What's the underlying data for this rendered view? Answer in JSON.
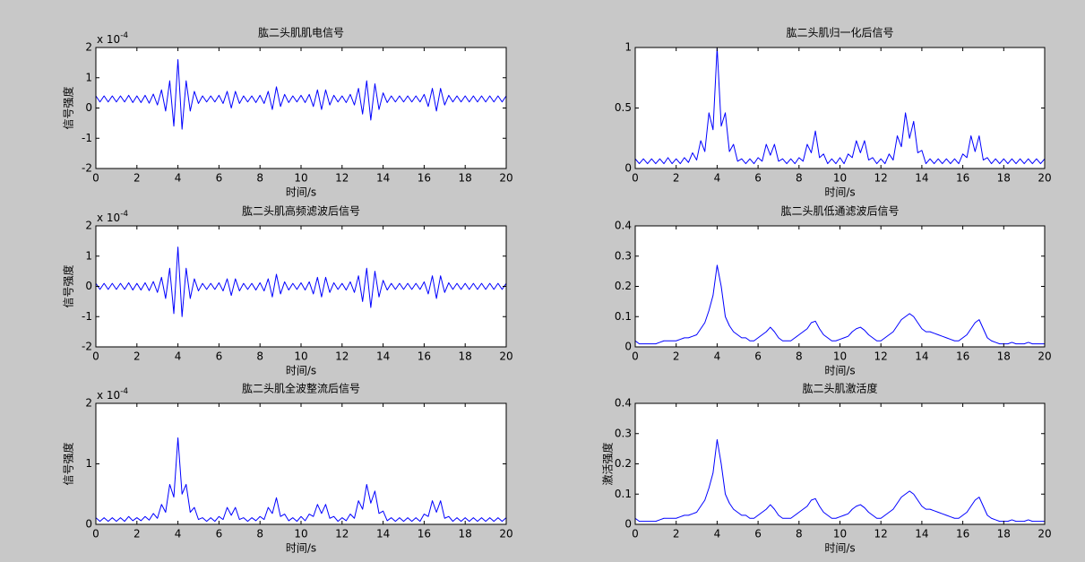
{
  "chart_data": [
    {
      "type": "line",
      "title": "肱二头肌肌电信号",
      "xlabel": "时间/s",
      "ylabel": "信号强度",
      "y_multiplier": "x 10",
      "y_exponent": "-4",
      "color": "#0000ff",
      "x": [
        0,
        0.2,
        0.4,
        0.6,
        0.8,
        1,
        1.2,
        1.4,
        1.6,
        1.8,
        2,
        2.2,
        2.4,
        2.6,
        2.8,
        3,
        3.2,
        3.4,
        3.6,
        3.8,
        4,
        4.2,
        4.4,
        4.6,
        4.8,
        5,
        5.2,
        5.4,
        5.6,
        5.8,
        6,
        6.2,
        6.4,
        6.6,
        6.8,
        7,
        7.2,
        7.4,
        7.6,
        7.8,
        8,
        8.2,
        8.4,
        8.6,
        8.8,
        9,
        9.2,
        9.4,
        9.6,
        9.8,
        10,
        10.2,
        10.4,
        10.6,
        10.8,
        11,
        11.2,
        11.4,
        11.6,
        11.8,
        12,
        12.2,
        12.4,
        12.6,
        12.8,
        13,
        13.2,
        13.4,
        13.6,
        13.8,
        14,
        14.2,
        14.4,
        14.6,
        14.8,
        15,
        15.2,
        15.4,
        15.6,
        15.8,
        16,
        16.2,
        16.4,
        16.6,
        16.8,
        17,
        17.2,
        17.4,
        17.6,
        17.8,
        18,
        18.2,
        18.4,
        18.6,
        18.8,
        19,
        19.2,
        19.4,
        19.6,
        19.8,
        20
      ],
      "values": [
        0.4,
        0.2,
        0.4,
        0.2,
        0.4,
        0.2,
        0.4,
        0.2,
        0.42,
        0.18,
        0.4,
        0.18,
        0.42,
        0.16,
        0.46,
        0.1,
        0.6,
        -0.1,
        0.9,
        -0.6,
        1.6,
        -0.7,
        0.9,
        -0.1,
        0.55,
        0.15,
        0.4,
        0.2,
        0.4,
        0.2,
        0.42,
        0.15,
        0.55,
        0,
        0.55,
        0.15,
        0.4,
        0.2,
        0.4,
        0.18,
        0.42,
        0.15,
        0.55,
        -0.05,
        0.7,
        0.05,
        0.45,
        0.18,
        0.4,
        0.2,
        0.42,
        0.18,
        0.45,
        0.05,
        0.6,
        -0.05,
        0.6,
        0.1,
        0.42,
        0.2,
        0.4,
        0.18,
        0.45,
        0.1,
        0.65,
        -0.2,
        0.9,
        -0.4,
        0.8,
        -0.05,
        0.5,
        0.18,
        0.4,
        0.2,
        0.4,
        0.2,
        0.4,
        0.2,
        0.4,
        0.2,
        0.45,
        0.05,
        0.65,
        -0.1,
        0.65,
        0.1,
        0.42,
        0.2,
        0.4,
        0.2,
        0.4,
        0.2,
        0.4,
        0.2,
        0.4,
        0.2,
        0.4,
        0.2,
        0.4,
        0.2,
        0.4
      ],
      "xlim": [
        0,
        20
      ],
      "xticks": [
        0,
        2,
        4,
        6,
        8,
        10,
        12,
        14,
        16,
        18,
        20
      ],
      "ylim": [
        -2,
        2
      ],
      "yticks": [
        -2,
        -1,
        0,
        1,
        2
      ]
    },
    {
      "type": "line",
      "title": "肱二头肌归一化后信号",
      "xlabel": "时间/s",
      "color": "#0000ff",
      "x": [
        0,
        0.2,
        0.4,
        0.6,
        0.8,
        1,
        1.2,
        1.4,
        1.6,
        1.8,
        2,
        2.2,
        2.4,
        2.6,
        2.8,
        3,
        3.2,
        3.4,
        3.6,
        3.8,
        4,
        4.2,
        4.4,
        4.6,
        4.8,
        5,
        5.2,
        5.4,
        5.6,
        5.8,
        6,
        6.2,
        6.4,
        6.6,
        6.8,
        7,
        7.2,
        7.4,
        7.6,
        7.8,
        8,
        8.2,
        8.4,
        8.6,
        8.8,
        9,
        9.2,
        9.4,
        9.6,
        9.8,
        10,
        10.2,
        10.4,
        10.6,
        10.8,
        11,
        11.2,
        11.4,
        11.6,
        11.8,
        12,
        12.2,
        12.4,
        12.6,
        12.8,
        13,
        13.2,
        13.4,
        13.6,
        13.8,
        14,
        14.2,
        14.4,
        14.6,
        14.8,
        15,
        15.2,
        15.4,
        15.6,
        15.8,
        16,
        16.2,
        16.4,
        16.6,
        16.8,
        17,
        17.2,
        17.4,
        17.6,
        17.8,
        18,
        18.2,
        18.4,
        18.6,
        18.8,
        19,
        19.2,
        19.4,
        19.6,
        19.8,
        20
      ],
      "values": [
        0.08,
        0.04,
        0.08,
        0.04,
        0.08,
        0.04,
        0.08,
        0.04,
        0.09,
        0.04,
        0.08,
        0.04,
        0.09,
        0.05,
        0.13,
        0.07,
        0.23,
        0.14,
        0.46,
        0.32,
        1.0,
        0.35,
        0.46,
        0.14,
        0.2,
        0.06,
        0.08,
        0.04,
        0.08,
        0.04,
        0.09,
        0.06,
        0.2,
        0.11,
        0.2,
        0.06,
        0.08,
        0.04,
        0.08,
        0.04,
        0.09,
        0.06,
        0.2,
        0.13,
        0.31,
        0.09,
        0.12,
        0.04,
        0.08,
        0.04,
        0.09,
        0.04,
        0.12,
        0.09,
        0.23,
        0.13,
        0.23,
        0.07,
        0.09,
        0.04,
        0.08,
        0.04,
        0.12,
        0.07,
        0.27,
        0.18,
        0.46,
        0.25,
        0.39,
        0.13,
        0.15,
        0.04,
        0.08,
        0.04,
        0.08,
        0.04,
        0.08,
        0.04,
        0.08,
        0.04,
        0.12,
        0.09,
        0.27,
        0.14,
        0.27,
        0.07,
        0.09,
        0.04,
        0.08,
        0.04,
        0.08,
        0.04,
        0.08,
        0.04,
        0.08,
        0.04,
        0.08,
        0.04,
        0.08,
        0.04,
        0.08
      ],
      "xlim": [
        0,
        20
      ],
      "xticks": [
        0,
        2,
        4,
        6,
        8,
        10,
        12,
        14,
        16,
        18,
        20
      ],
      "ylim": [
        0,
        1
      ],
      "yticks": [
        0,
        0.5,
        1
      ]
    },
    {
      "type": "line",
      "title": "肱二头肌高频滤波后信号",
      "xlabel": "时间/s",
      "ylabel": "信号强度",
      "y_multiplier": "x 10",
      "y_exponent": "-4",
      "color": "#0000ff",
      "x": [
        0,
        0.2,
        0.4,
        0.6,
        0.8,
        1,
        1.2,
        1.4,
        1.6,
        1.8,
        2,
        2.2,
        2.4,
        2.6,
        2.8,
        3,
        3.2,
        3.4,
        3.6,
        3.8,
        4,
        4.2,
        4.4,
        4.6,
        4.8,
        5,
        5.2,
        5.4,
        5.6,
        5.8,
        6,
        6.2,
        6.4,
        6.6,
        6.8,
        7,
        7.2,
        7.4,
        7.6,
        7.8,
        8,
        8.2,
        8.4,
        8.6,
        8.8,
        9,
        9.2,
        9.4,
        9.6,
        9.8,
        10,
        10.2,
        10.4,
        10.6,
        10.8,
        11,
        11.2,
        11.4,
        11.6,
        11.8,
        12,
        12.2,
        12.4,
        12.6,
        12.8,
        13,
        13.2,
        13.4,
        13.6,
        13.8,
        14,
        14.2,
        14.4,
        14.6,
        14.8,
        15,
        15.2,
        15.4,
        15.6,
        15.8,
        16,
        16.2,
        16.4,
        16.6,
        16.8,
        17,
        17.2,
        17.4,
        17.6,
        17.8,
        18,
        18.2,
        18.4,
        18.6,
        18.8,
        19,
        19.2,
        19.4,
        19.6,
        19.8,
        20
      ],
      "values": [
        0.1,
        -0.1,
        0.1,
        -0.1,
        0.1,
        -0.1,
        0.1,
        -0.1,
        0.12,
        -0.12,
        0.1,
        -0.12,
        0.12,
        -0.14,
        0.16,
        -0.2,
        0.3,
        -0.4,
        0.6,
        -0.9,
        1.3,
        -1.0,
        0.6,
        -0.4,
        0.25,
        -0.15,
        0.1,
        -0.1,
        0.1,
        -0.1,
        0.12,
        -0.15,
        0.25,
        -0.3,
        0.25,
        -0.15,
        0.1,
        -0.1,
        0.1,
        -0.12,
        0.12,
        -0.15,
        0.25,
        -0.35,
        0.4,
        -0.25,
        0.15,
        -0.12,
        0.1,
        -0.1,
        0.12,
        -0.12,
        0.15,
        -0.25,
        0.3,
        -0.35,
        0.3,
        -0.2,
        0.12,
        -0.1,
        0.1,
        -0.12,
        0.15,
        -0.2,
        0.35,
        -0.5,
        0.6,
        -0.7,
        0.5,
        -0.35,
        0.2,
        -0.12,
        0.1,
        -0.1,
        0.1,
        -0.1,
        0.1,
        -0.1,
        0.1,
        -0.1,
        0.15,
        -0.25,
        0.35,
        -0.4,
        0.35,
        -0.2,
        0.12,
        -0.1,
        0.1,
        -0.1,
        0.1,
        -0.1,
        0.1,
        -0.1,
        0.1,
        -0.1,
        0.1,
        -0.1,
        0.1,
        -0.1,
        0.1
      ],
      "xlim": [
        0,
        20
      ],
      "xticks": [
        0,
        2,
        4,
        6,
        8,
        10,
        12,
        14,
        16,
        18,
        20
      ],
      "ylim": [
        -2,
        2
      ],
      "yticks": [
        -2,
        -1,
        0,
        1,
        2
      ]
    },
    {
      "type": "line",
      "title": "肱二头肌低通滤波后信号",
      "xlabel": "时间/s",
      "color": "#0000ff",
      "x": [
        0,
        0.2,
        0.4,
        0.6,
        0.8,
        1,
        1.2,
        1.4,
        1.6,
        1.8,
        2,
        2.2,
        2.4,
        2.6,
        2.8,
        3,
        3.2,
        3.4,
        3.6,
        3.8,
        4,
        4.2,
        4.4,
        4.6,
        4.8,
        5,
        5.2,
        5.4,
        5.6,
        5.8,
        6,
        6.2,
        6.4,
        6.6,
        6.8,
        7,
        7.2,
        7.4,
        7.6,
        7.8,
        8,
        8.2,
        8.4,
        8.6,
        8.8,
        9,
        9.2,
        9.4,
        9.6,
        9.8,
        10,
        10.2,
        10.4,
        10.6,
        10.8,
        11,
        11.2,
        11.4,
        11.6,
        11.8,
        12,
        12.2,
        12.4,
        12.6,
        12.8,
        13,
        13.2,
        13.4,
        13.6,
        13.8,
        14,
        14.2,
        14.4,
        14.6,
        14.8,
        15,
        15.2,
        15.4,
        15.6,
        15.8,
        16,
        16.2,
        16.4,
        16.6,
        16.8,
        17,
        17.2,
        17.4,
        17.6,
        17.8,
        18,
        18.2,
        18.4,
        18.6,
        18.8,
        19,
        19.2,
        19.4,
        19.6,
        19.8,
        20
      ],
      "values": [
        0.02,
        0.01,
        0.01,
        0.01,
        0.01,
        0.01,
        0.015,
        0.02,
        0.02,
        0.02,
        0.02,
        0.025,
        0.03,
        0.03,
        0.035,
        0.04,
        0.06,
        0.08,
        0.12,
        0.17,
        0.27,
        0.2,
        0.1,
        0.07,
        0.05,
        0.04,
        0.03,
        0.03,
        0.02,
        0.02,
        0.03,
        0.04,
        0.05,
        0.065,
        0.05,
        0.03,
        0.02,
        0.02,
        0.02,
        0.03,
        0.04,
        0.05,
        0.06,
        0.08,
        0.085,
        0.06,
        0.04,
        0.03,
        0.02,
        0.02,
        0.025,
        0.03,
        0.035,
        0.05,
        0.06,
        0.065,
        0.055,
        0.04,
        0.03,
        0.02,
        0.02,
        0.03,
        0.04,
        0.05,
        0.07,
        0.09,
        0.1,
        0.11,
        0.1,
        0.08,
        0.06,
        0.05,
        0.05,
        0.045,
        0.04,
        0.035,
        0.03,
        0.025,
        0.02,
        0.02,
        0.03,
        0.04,
        0.06,
        0.08,
        0.09,
        0.06,
        0.03,
        0.02,
        0.015,
        0.01,
        0.01,
        0.01,
        0.015,
        0.01,
        0.01,
        0.01,
        0.015,
        0.01,
        0.01,
        0.01,
        0.01
      ],
      "xlim": [
        0,
        20
      ],
      "xticks": [
        0,
        2,
        4,
        6,
        8,
        10,
        12,
        14,
        16,
        18,
        20
      ],
      "ylim": [
        0,
        0.4
      ],
      "yticks": [
        0,
        0.1,
        0.2,
        0.3,
        0.4
      ]
    },
    {
      "type": "line",
      "title": "肱二头肌全波整流后信号",
      "xlabel": "时间/s",
      "ylabel": "信号强度",
      "y_multiplier": "x 10",
      "y_exponent": "-4",
      "color": "#0000ff",
      "x": [
        0,
        0.2,
        0.4,
        0.6,
        0.8,
        1,
        1.2,
        1.4,
        1.6,
        1.8,
        2,
        2.2,
        2.4,
        2.6,
        2.8,
        3,
        3.2,
        3.4,
        3.6,
        3.8,
        4,
        4.2,
        4.4,
        4.6,
        4.8,
        5,
        5.2,
        5.4,
        5.6,
        5.8,
        6,
        6.2,
        6.4,
        6.6,
        6.8,
        7,
        7.2,
        7.4,
        7.6,
        7.8,
        8,
        8.2,
        8.4,
        8.6,
        8.8,
        9,
        9.2,
        9.4,
        9.6,
        9.8,
        10,
        10.2,
        10.4,
        10.6,
        10.8,
        11,
        11.2,
        11.4,
        11.6,
        11.8,
        12,
        12.2,
        12.4,
        12.6,
        12.8,
        13,
        13.2,
        13.4,
        13.6,
        13.8,
        14,
        14.2,
        14.4,
        14.6,
        14.8,
        15,
        15.2,
        15.4,
        15.6,
        15.8,
        16,
        16.2,
        16.4,
        16.6,
        16.8,
        17,
        17.2,
        17.4,
        17.6,
        17.8,
        18,
        18.2,
        18.4,
        18.6,
        18.8,
        19,
        19.2,
        19.4,
        19.6,
        19.8,
        20
      ],
      "values": [
        0.11,
        0.05,
        0.11,
        0.05,
        0.11,
        0.05,
        0.11,
        0.05,
        0.13,
        0.06,
        0.11,
        0.06,
        0.13,
        0.07,
        0.18,
        0.1,
        0.33,
        0.2,
        0.66,
        0.45,
        1.43,
        0.5,
        0.66,
        0.2,
        0.28,
        0.08,
        0.11,
        0.05,
        0.11,
        0.05,
        0.13,
        0.08,
        0.28,
        0.15,
        0.28,
        0.08,
        0.11,
        0.05,
        0.11,
        0.06,
        0.13,
        0.08,
        0.28,
        0.18,
        0.44,
        0.13,
        0.17,
        0.06,
        0.11,
        0.05,
        0.13,
        0.06,
        0.17,
        0.13,
        0.33,
        0.18,
        0.33,
        0.1,
        0.13,
        0.05,
        0.11,
        0.06,
        0.17,
        0.1,
        0.39,
        0.25,
        0.66,
        0.35,
        0.55,
        0.18,
        0.22,
        0.06,
        0.11,
        0.05,
        0.11,
        0.05,
        0.11,
        0.05,
        0.11,
        0.05,
        0.17,
        0.13,
        0.39,
        0.2,
        0.39,
        0.1,
        0.13,
        0.05,
        0.11,
        0.05,
        0.11,
        0.05,
        0.11,
        0.05,
        0.11,
        0.05,
        0.11,
        0.05,
        0.11,
        0.05,
        0.11
      ],
      "xlim": [
        0,
        20
      ],
      "xticks": [
        0,
        2,
        4,
        6,
        8,
        10,
        12,
        14,
        16,
        18,
        20
      ],
      "ylim": [
        0,
        2
      ],
      "yticks": [
        0,
        1,
        2
      ]
    },
    {
      "type": "line",
      "title": "肱二头肌激活度",
      "xlabel": "时间/s",
      "ylabel": "激活强度",
      "color": "#0000ff",
      "x": [
        0,
        0.2,
        0.4,
        0.6,
        0.8,
        1,
        1.2,
        1.4,
        1.6,
        1.8,
        2,
        2.2,
        2.4,
        2.6,
        2.8,
        3,
        3.2,
        3.4,
        3.6,
        3.8,
        4,
        4.2,
        4.4,
        4.6,
        4.8,
        5,
        5.2,
        5.4,
        5.6,
        5.8,
        6,
        6.2,
        6.4,
        6.6,
        6.8,
        7,
        7.2,
        7.4,
        7.6,
        7.8,
        8,
        8.2,
        8.4,
        8.6,
        8.8,
        9,
        9.2,
        9.4,
        9.6,
        9.8,
        10,
        10.2,
        10.4,
        10.6,
        10.8,
        11,
        11.2,
        11.4,
        11.6,
        11.8,
        12,
        12.2,
        12.4,
        12.6,
        12.8,
        13,
        13.2,
        13.4,
        13.6,
        13.8,
        14,
        14.2,
        14.4,
        14.6,
        14.8,
        15,
        15.2,
        15.4,
        15.6,
        15.8,
        16,
        16.2,
        16.4,
        16.6,
        16.8,
        17,
        17.2,
        17.4,
        17.6,
        17.8,
        18,
        18.2,
        18.4,
        18.6,
        18.8,
        19,
        19.2,
        19.4,
        19.6,
        19.8,
        20
      ],
      "values": [
        0.02,
        0.01,
        0.01,
        0.01,
        0.01,
        0.01,
        0.015,
        0.02,
        0.02,
        0.02,
        0.02,
        0.025,
        0.03,
        0.03,
        0.035,
        0.04,
        0.06,
        0.08,
        0.12,
        0.17,
        0.28,
        0.2,
        0.1,
        0.07,
        0.05,
        0.04,
        0.03,
        0.03,
        0.02,
        0.02,
        0.03,
        0.04,
        0.05,
        0.065,
        0.05,
        0.03,
        0.02,
        0.02,
        0.02,
        0.03,
        0.04,
        0.05,
        0.06,
        0.08,
        0.085,
        0.06,
        0.04,
        0.03,
        0.02,
        0.02,
        0.025,
        0.03,
        0.035,
        0.05,
        0.06,
        0.065,
        0.055,
        0.04,
        0.03,
        0.02,
        0.02,
        0.03,
        0.04,
        0.05,
        0.07,
        0.09,
        0.1,
        0.11,
        0.1,
        0.08,
        0.06,
        0.05,
        0.05,
        0.045,
        0.04,
        0.035,
        0.03,
        0.025,
        0.02,
        0.02,
        0.03,
        0.04,
        0.06,
        0.08,
        0.09,
        0.06,
        0.03,
        0.02,
        0.015,
        0.01,
        0.01,
        0.01,
        0.015,
        0.01,
        0.01,
        0.01,
        0.015,
        0.01,
        0.01,
        0.01,
        0.01
      ],
      "xlim": [
        0,
        20
      ],
      "xticks": [
        0,
        2,
        4,
        6,
        8,
        10,
        12,
        14,
        16,
        18,
        20
      ],
      "ylim": [
        0,
        0.4
      ],
      "yticks": [
        0,
        0.1,
        0.2,
        0.3,
        0.4
      ]
    }
  ]
}
